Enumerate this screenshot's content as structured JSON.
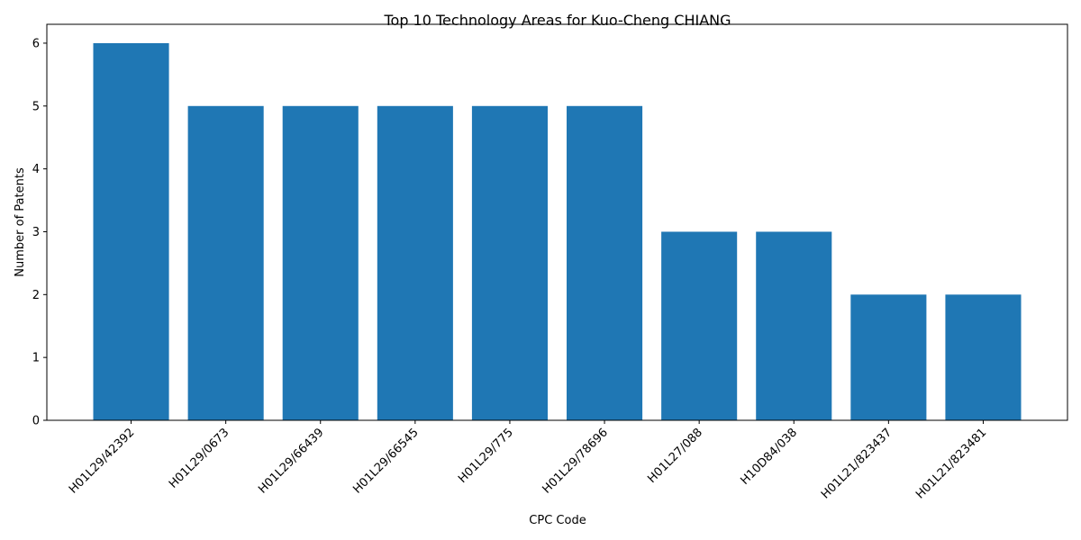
{
  "chart_data": {
    "type": "bar",
    "title": "Top 10 Technology Areas for Kuo-Cheng CHIANG",
    "xlabel": "CPC Code",
    "ylabel": "Number of Patents",
    "categories": [
      "H01L29/42392",
      "H01L29/0673",
      "H01L29/66439",
      "H01L29/66545",
      "H01L29/775",
      "H01L29/78696",
      "H01L27/088",
      "H10D84/038",
      "H01L21/823437",
      "H01L21/823481"
    ],
    "values": [
      6,
      5,
      5,
      5,
      5,
      5,
      3,
      3,
      2,
      2
    ],
    "ylim": [
      0,
      6.3
    ],
    "yticks": [
      0,
      1,
      2,
      3,
      4,
      5,
      6
    ],
    "bar_color": "#1f77b4",
    "grid": false,
    "legend": "none"
  }
}
